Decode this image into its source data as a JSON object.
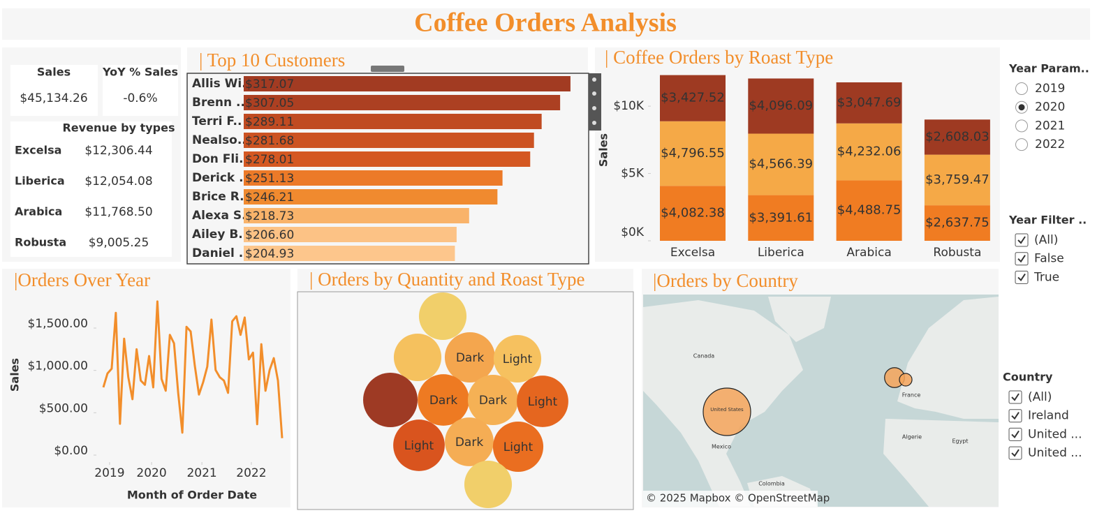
{
  "title": "Coffee Orders Analysis",
  "kpis": [
    {
      "label": "Sales",
      "value": "$45,134.26"
    },
    {
      "label": "YoY % Sales",
      "value": "-0.6%"
    }
  ],
  "revenue_by_types": {
    "title": "Revenue by types",
    "rows": [
      {
        "type": "Excelsa",
        "value": "$12,306.44"
      },
      {
        "type": "Liberica",
        "value": "$12,054.08"
      },
      {
        "type": "Arabica",
        "value": "$11,768.50"
      },
      {
        "type": "Robusta",
        "value": "$9,005.25"
      }
    ]
  },
  "chart_data": [
    {
      "type": "hbar",
      "title": "| Top 10 Customers",
      "categories": [
        "Allis Wi..",
        "Brenn ..",
        "Terri F..",
        "Nealso..",
        "Don Fli..",
        "Derick ..",
        "Brice R..",
        "Alexa S..",
        "Ailey B..",
        "Daniel .."
      ],
      "values": [
        317.07,
        307.05,
        289.11,
        281.68,
        278.01,
        251.13,
        246.21,
        218.73,
        206.6,
        204.93
      ],
      "value_labels": [
        "$317.07",
        "$307.05",
        "$289.11",
        "$281.68",
        "$278.01",
        "$251.13",
        "$246.21",
        "$218.73",
        "$206.60",
        "$204.93"
      ],
      "colors": [
        "#a23b22",
        "#ac4022",
        "#c04b22",
        "#cc5322",
        "#d45822",
        "#ec7a28",
        "#f08a2f",
        "#f9b36a",
        "#fcc285",
        "#fdc68c"
      ],
      "xlim": [
        0,
        330
      ]
    },
    {
      "type": "stacked",
      "title": "| Coffee Orders by Roast Type",
      "y_label": "Sales",
      "categories": [
        "Excelsa",
        "Liberica",
        "Arabica",
        "Robusta"
      ],
      "series": [
        {
          "color": "#f07c22",
          "values": [
            4082.38,
            3391.61,
            4488.75,
            2637.75
          ],
          "value_labels": [
            "$4,082.38",
            "$3,391.61",
            "$4,488.75",
            "$2,637.75"
          ]
        },
        {
          "color": "#f5a947",
          "values": [
            4796.55,
            4566.39,
            4232.06,
            3759.47
          ],
          "value_labels": [
            "$4,796.55",
            "$4,566.39",
            "$4,232.06",
            "$3,759.47"
          ]
        },
        {
          "color": "#9e3a22",
          "values": [
            3427.52,
            4096.09,
            3047.69,
            2608.03
          ],
          "value_labels": [
            "$3,427.52",
            "$4,096.09",
            "$3,047.69",
            "$2,608.03"
          ]
        }
      ],
      "ylim": [
        0,
        12700
      ],
      "yticks": [
        {
          "value": 0,
          "label": "$0K"
        },
        {
          "value": 5000,
          "label": "$5K"
        },
        {
          "value": 10000,
          "label": "$10K"
        }
      ]
    },
    {
      "type": "line",
      "title": "|Orders Over Year",
      "x_label": "Month of Order Date",
      "y_label": "Sales",
      "color": "#f28e2b",
      "values": [
        800,
        965,
        1020,
        1680,
        370,
        1375,
        920,
        660,
        1250,
        880,
        830,
        1170,
        800,
        1815,
        900,
        760,
        1420,
        1320,
        735,
        265,
        1515,
        1460,
        1055,
        715,
        860,
        1045,
        1600,
        1005,
        920,
        880,
        735,
        1580,
        1640,
        1420,
        1625,
        1130,
        1210,
        365,
        1310,
        760,
        1005,
        1145,
        880,
        200
      ],
      "xlim": [
        0,
        43
      ],
      "xticks": [
        {
          "value": 1.5,
          "label": "2019"
        },
        {
          "value": 11.6,
          "label": "2020"
        },
        {
          "value": 23.7,
          "label": "2021"
        },
        {
          "value": 35.6,
          "label": "2022"
        }
      ],
      "ylim": [
        -60,
        1830
      ],
      "yticks": [
        {
          "value": 0,
          "label": "$0.00"
        },
        {
          "value": 500,
          "label": "$500.00"
        },
        {
          "value": 1000,
          "label": "$1,000.00"
        },
        {
          "value": 1500,
          "label": "$1,500.00"
        }
      ]
    },
    {
      "type": "packed-bubble",
      "title": "| Orders by Quantity and Roast Type",
      "categories": [
        null,
        null,
        "Dark",
        "Light",
        null,
        "Dark",
        "Dark",
        "Light",
        "Light",
        "Dark",
        "Light",
        null
      ],
      "values": [
        290,
        290,
        325,
        290,
        380,
        340,
        325,
        340,
        340,
        305,
        325,
        290
      ],
      "colors": [
        "#f1cf6a",
        "#f5c15e",
        "#f4a64e",
        "#f6c15f",
        "#9e3a24",
        "#ee7a22",
        "#f5b155",
        "#e5661f",
        "#d9541e",
        "#f5ad54",
        "#ea6e20",
        "#f1cf6a"
      ]
    },
    {
      "type": "map",
      "title": "|Orders by Country",
      "color": "#f4a55a",
      "categories": [
        "United States",
        null,
        null
      ],
      "values": [
        34000,
        6000,
        2400
      ],
      "place_labels": [
        "Canada",
        "Mexico",
        "Colombia",
        "France",
        "Algerie",
        "Egypt"
      ],
      "attribution": "© 2025 Mapbox © OpenStreetMap"
    }
  ],
  "filters": {
    "year_parameter": {
      "title": "Year Param..",
      "options": [
        "2019",
        "2020",
        "2021",
        "2022"
      ],
      "selected": "2020"
    },
    "year_filter": {
      "title": "Year Filter ..",
      "options": [
        "(All)",
        "False",
        "True"
      ],
      "checked": true
    },
    "country": {
      "title": "Country",
      "options": [
        "(All)",
        "Ireland",
        "United ...",
        "United ..."
      ],
      "checked": true
    }
  }
}
